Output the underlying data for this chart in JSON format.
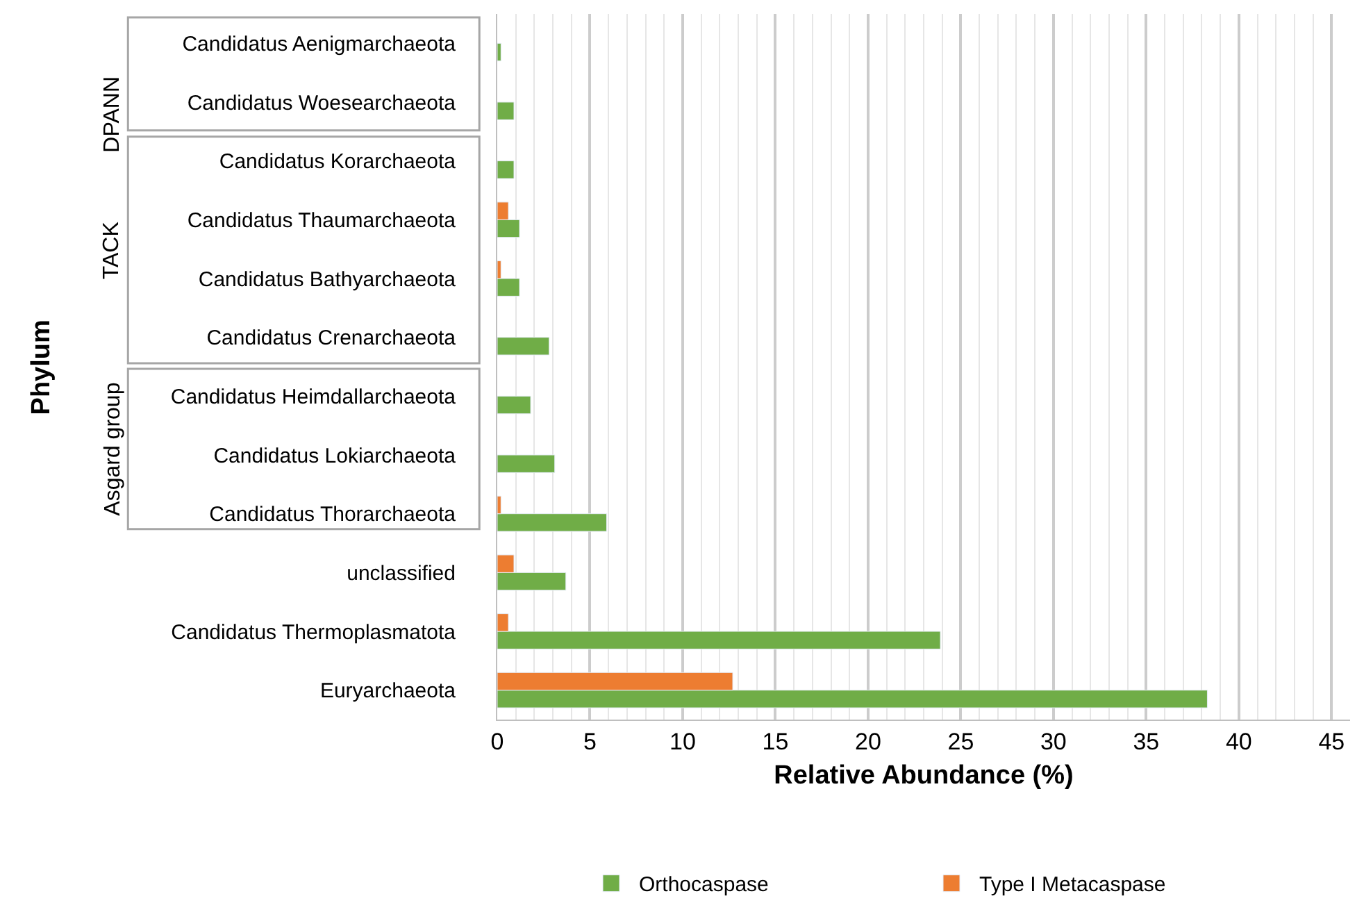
{
  "chart_data": {
    "type": "bar",
    "orientation": "horizontal",
    "xlabel": "Relative Abundance (%)",
    "ylabel": "Phylum",
    "categories": [
      "Candidatus Aenigmarchaeota",
      "Candidatus Woesearchaeota",
      "Candidatus Korarchaeota",
      "Candidatus Thaumarchaeota",
      "Candidatus Bathyarchaeota",
      "Candidatus Crenarchaeota",
      "Candidatus Heimdallarchaeota",
      "Candidatus Lokiarchaeota",
      "Candidatus Thorarchaeota",
      "unclassified",
      "Candidatus Thermoplasmatota",
      "Euryarchaeota"
    ],
    "series": [
      {
        "name": "Orthocaspase",
        "color": "#70ad47",
        "values": [
          0.2,
          0.9,
          0.9,
          1.2,
          1.2,
          2.8,
          1.8,
          3.1,
          5.9,
          3.7,
          23.9,
          38.3
        ]
      },
      {
        "name": "Type I Metacaspase",
        "color": "#ed7d31",
        "values": [
          null,
          null,
          null,
          0.6,
          0.2,
          null,
          null,
          null,
          0.2,
          0.9,
          0.6,
          12.7
        ]
      }
    ],
    "xlim": [
      0,
      46
    ],
    "xticks": [
      0,
      5,
      10,
      15,
      20,
      25,
      30,
      35,
      40,
      45
    ],
    "grid": "x",
    "legend": "bottom",
    "annotations": [
      "DPANN",
      "TACK",
      "Asgard group"
    ]
  }
}
